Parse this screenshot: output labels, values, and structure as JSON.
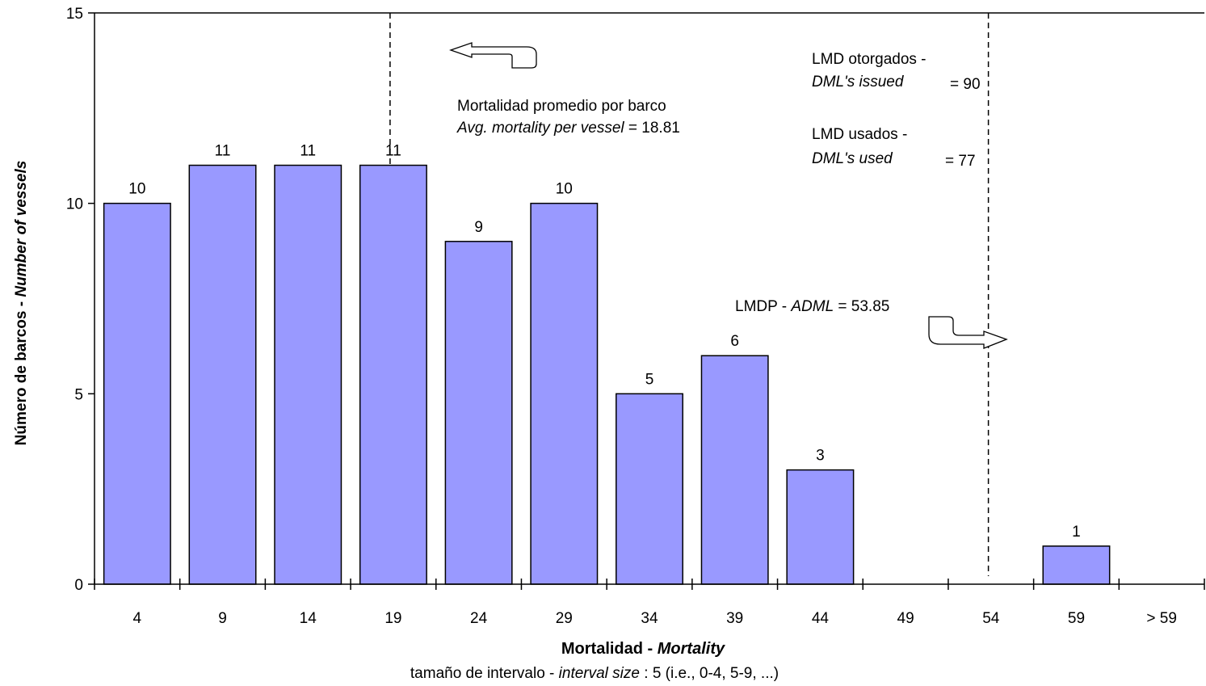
{
  "chart_data": {
    "type": "bar",
    "categories": [
      "4",
      "9",
      "14",
      "19",
      "24",
      "29",
      "34",
      "39",
      "44",
      "49",
      "54",
      "59",
      "> 59"
    ],
    "values": [
      10,
      11,
      11,
      11,
      9,
      10,
      5,
      6,
      3,
      0,
      0,
      1,
      0
    ],
    "data_labels": [
      "10",
      "11",
      "11",
      "11",
      "9",
      "10",
      "5",
      "6",
      "3",
      "",
      "",
      "1",
      ""
    ],
    "bar_color": "#9999ff",
    "ylim": [
      0,
      15
    ],
    "yticks": [
      "0",
      "5",
      "10",
      "15"
    ],
    "ylabel": {
      "normal": "Número de barcos - ",
      "italic": "Number of vessels"
    },
    "xlabel": {
      "normal": "Mortalidad - ",
      "italic": "Mortality"
    },
    "subtitle": {
      "prefix": "tamaño de intervalo - ",
      "italic": "interval size",
      "suffix": " : 5 (i.e., 0-4, 5-9, ...)"
    },
    "reference_lines": [
      {
        "name": "average",
        "x": 18.81
      },
      {
        "name": "adml",
        "x": 53.85
      }
    ],
    "annotations": {
      "avg_line1": "Mortalidad promedio por barco",
      "avg_line2_italic": "Avg. mortality per vessel",
      "avg_line2_value": " = 18.81",
      "lmd_issued_label": "LMD otorgados -",
      "lmd_issued_italic": "DML's issued",
      "lmd_issued_value": "= 90",
      "lmd_used_label": "LMD usados -",
      "lmd_used_italic": "DML's used",
      "lmd_used_value": "= 77",
      "lmdp_label": "LMDP - ",
      "lmdp_italic": "ADML",
      "lmdp_value": " = 53.85"
    }
  }
}
